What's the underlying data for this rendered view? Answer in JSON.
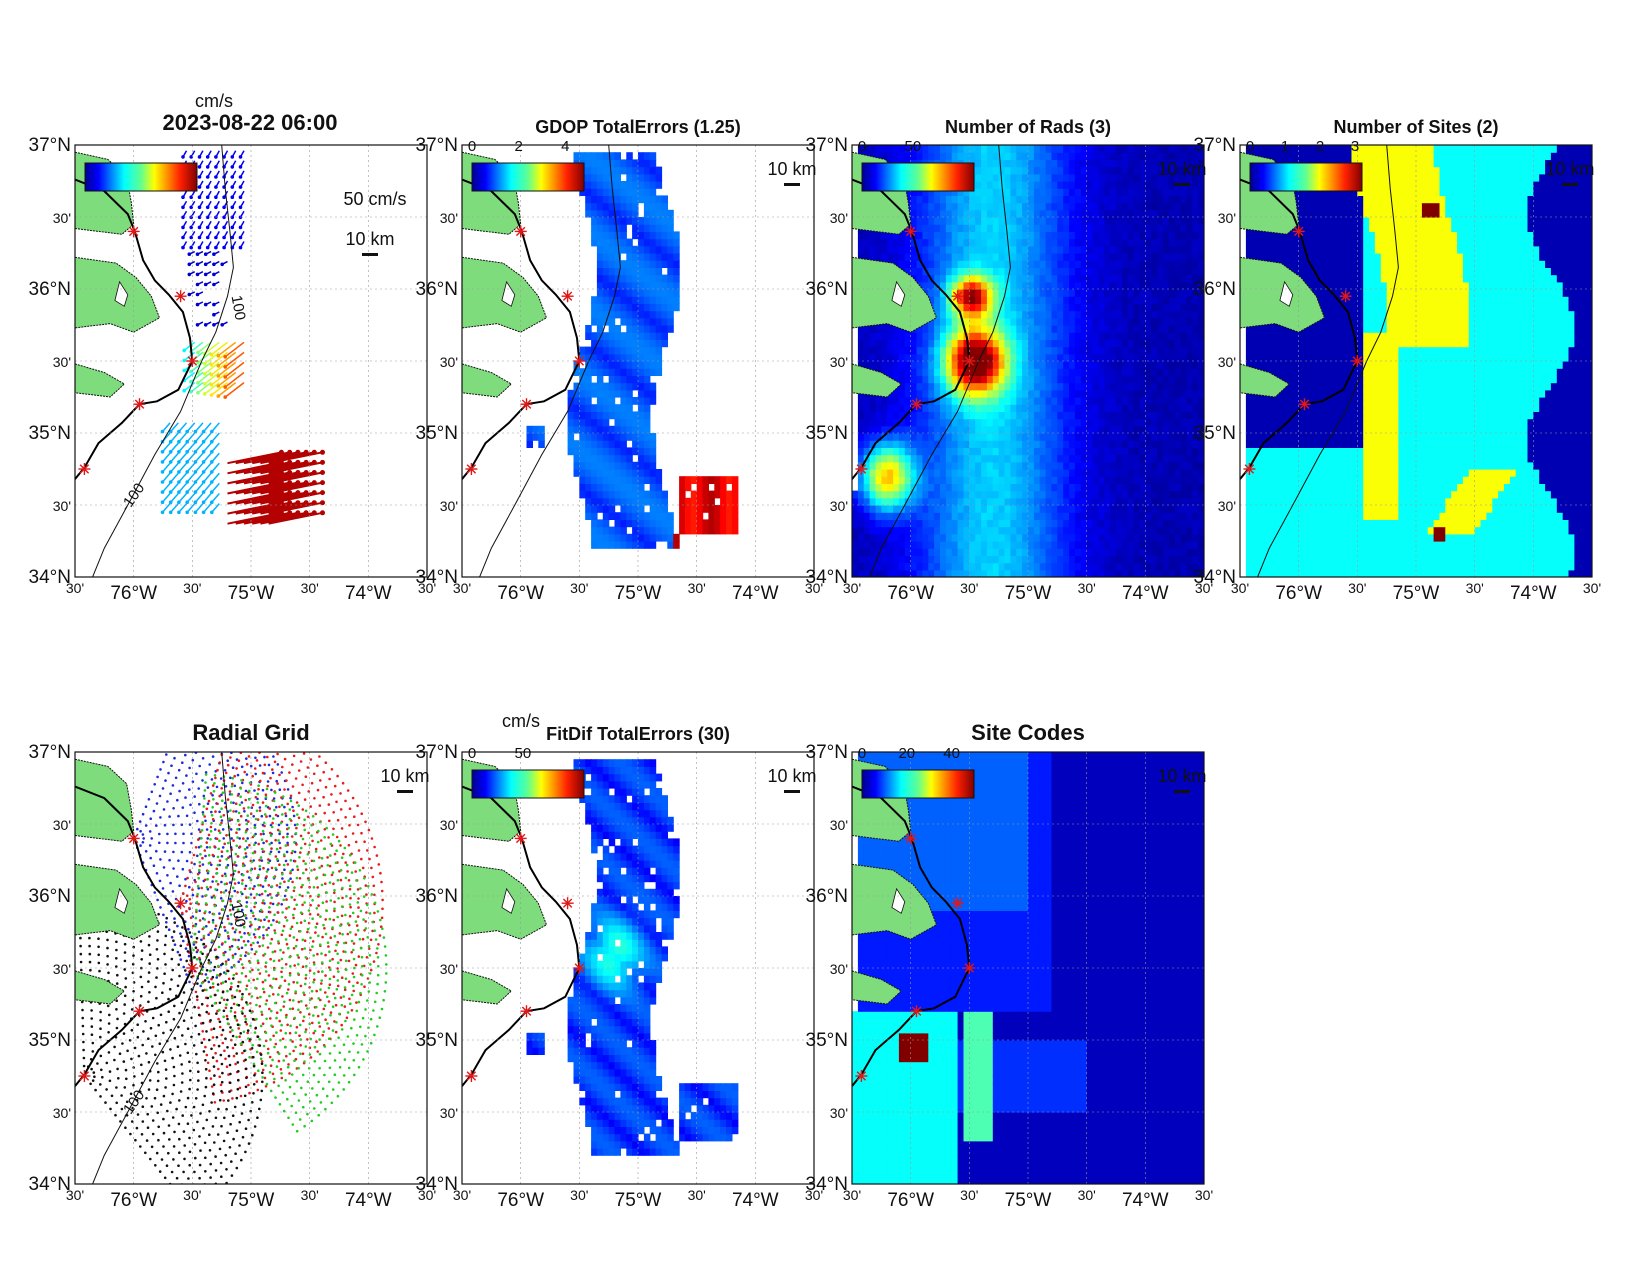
{
  "figure": {
    "timestamp": "2023-08-22 06:00",
    "lat_ticks": [
      "37°N",
      "30'",
      "36°N",
      "30'",
      "35°N",
      "30'",
      "34°N"
    ],
    "lon_ticks": [
      "30'",
      "76°W",
      "30'",
      "75°W",
      "30'",
      "74°W",
      "30'"
    ],
    "scale_bar": "10 km",
    "vector_scale": "50 cm/s",
    "unit_label": "cm/s",
    "depth_contour": "100",
    "depth_contour_neg": "-100",
    "colors": {
      "land": "#7fdc7c",
      "coast": "#000000",
      "site_marker": "#e01818",
      "ocean_bg": "#ffffff",
      "blue_sites": "#1c2bdc",
      "red_sites": "#e81c1c",
      "green_sites": "#22cc22",
      "black_sites": "#111111"
    }
  },
  "panels": [
    {
      "title": "",
      "colorbar_ticks": [],
      "kind": "vectors"
    },
    {
      "title": "GDOP TotalErrors (1.25)",
      "colorbar_ticks": [
        "0",
        "2",
        "4"
      ],
      "kind": "gdop"
    },
    {
      "title": "Number of Rads (3)",
      "colorbar_ticks": [
        "0",
        "50"
      ],
      "kind": "rads"
    },
    {
      "title": "Number of Sites (2)",
      "colorbar_ticks": [
        "0",
        "1",
        "2",
        "3"
      ],
      "kind": "sites"
    },
    {
      "title": "Radial Grid",
      "colorbar_ticks": [],
      "kind": "radgrid"
    },
    {
      "title": "FitDif TotalErrors (30)",
      "colorbar_ticks": [
        "0",
        "50"
      ],
      "kind": "fitdif"
    },
    {
      "title": "Site Codes",
      "colorbar_ticks": [
        "0",
        "20",
        "40"
      ],
      "kind": "codes"
    }
  ],
  "chart_data": {
    "type": "heatmap",
    "lon_range": [
      -76.5,
      -73.5
    ],
    "lat_range": [
      34,
      37
    ],
    "radar_sites": [
      {
        "lon": -76.0,
        "lat": 36.4
      },
      {
        "lon": -75.6,
        "lat": 35.95
      },
      {
        "lon": -75.5,
        "lat": 35.5
      },
      {
        "lon": -75.95,
        "lat": 35.2
      },
      {
        "lon": -76.42,
        "lat": 34.75
      }
    ]
  }
}
